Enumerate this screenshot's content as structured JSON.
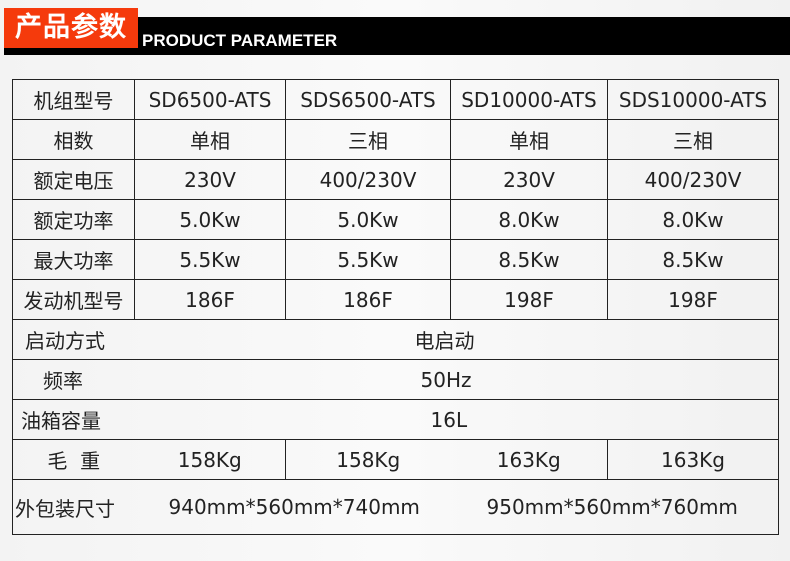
{
  "header": {
    "title_cn": "产品参数",
    "title_en": "PRODUCT PARAMETER"
  },
  "table": {
    "model_row": {
      "label": "机组型号",
      "values": [
        "SD6500-ATS",
        "SDS6500-ATS",
        "SD10000-ATS",
        "SDS10000-ATS"
      ]
    },
    "rows": [
      {
        "label": "相数",
        "values": [
          "单相",
          "三相",
          "单相",
          "三相"
        ]
      },
      {
        "label": "额定电压",
        "values": [
          "230V",
          "400/230V",
          "230V",
          "400/230V"
        ]
      },
      {
        "label": "额定功率",
        "values": [
          "5.0Kw",
          "5.0Kw",
          "8.0Kw",
          "8.0Kw"
        ]
      },
      {
        "label": "最大功率",
        "values": [
          "5.5Kw",
          "5.5Kw",
          "8.5Kw",
          "8.5Kw"
        ]
      },
      {
        "label": "发动机型号",
        "values": [
          "186F",
          "186F",
          "198F",
          "198F"
        ]
      }
    ],
    "start": {
      "label": "启动方式",
      "value": "电启动"
    },
    "freq": {
      "label": "频率",
      "value": "50Hz"
    },
    "tank": {
      "label": "油箱容量",
      "value": "16L"
    },
    "weight": {
      "label": "毛  重",
      "values": [
        "158Kg",
        "158Kg",
        "163Kg",
        "163Kg"
      ]
    },
    "pack": {
      "label": "外包装尺寸",
      "values": [
        "940mm*560mm*740mm",
        "950mm*560mm*760mm"
      ]
    }
  }
}
